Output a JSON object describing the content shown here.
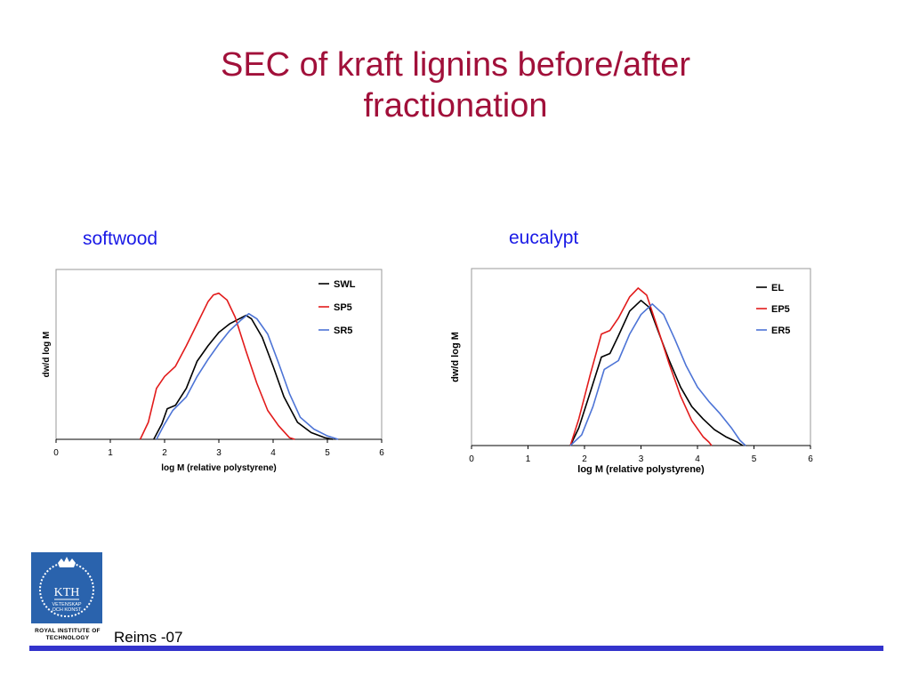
{
  "slide": {
    "title_line1": "SEC of kraft lignins before/after",
    "title_line2": "fractionation",
    "footer": "Reims -07",
    "institution": "ROYAL INSTITUTE OF TECHNOLOGY",
    "logo_text_main": "KTH",
    "logo_text_sub1": "VETENSKAP",
    "logo_text_sub2": "OCH KONST"
  },
  "colors": {
    "title": "#a1103a",
    "heading": "#1a1ae6",
    "footer_bar": "#3333cc",
    "logo": "#2a63ad"
  },
  "chart_data": [
    {
      "type": "line",
      "title": "softwood",
      "xlabel": "log M (relative polystyrene)",
      "ylabel": "dw/d log M",
      "xlim": [
        0,
        6
      ],
      "ylim": [
        0,
        1
      ],
      "xticks": [
        0,
        1,
        2,
        3,
        4,
        5,
        6
      ],
      "legend": "top-right",
      "grid": false,
      "series": [
        {
          "name": "SWL",
          "color": "#000000",
          "points": [
            [
              1.8,
              0
            ],
            [
              1.95,
              0.09
            ],
            [
              2.05,
              0.18
            ],
            [
              2.2,
              0.2
            ],
            [
              2.4,
              0.3
            ],
            [
              2.6,
              0.46
            ],
            [
              2.8,
              0.55
            ],
            [
              3.0,
              0.63
            ],
            [
              3.2,
              0.68
            ],
            [
              3.5,
              0.73
            ],
            [
              3.6,
              0.71
            ],
            [
              3.8,
              0.6
            ],
            [
              4.0,
              0.43
            ],
            [
              4.2,
              0.25
            ],
            [
              4.45,
              0.1
            ],
            [
              4.7,
              0.04
            ],
            [
              4.95,
              0.01
            ],
            [
              5.1,
              0
            ]
          ]
        },
        {
          "name": "SP5",
          "color": "#e21b1b",
          "points": [
            [
              1.55,
              0
            ],
            [
              1.7,
              0.1
            ],
            [
              1.85,
              0.3
            ],
            [
              2.0,
              0.37
            ],
            [
              2.2,
              0.43
            ],
            [
              2.4,
              0.55
            ],
            [
              2.6,
              0.68
            ],
            [
              2.8,
              0.81
            ],
            [
              2.9,
              0.85
            ],
            [
              3.0,
              0.86
            ],
            [
              3.15,
              0.82
            ],
            [
              3.3,
              0.72
            ],
            [
              3.5,
              0.52
            ],
            [
              3.7,
              0.33
            ],
            [
              3.9,
              0.17
            ],
            [
              4.1,
              0.08
            ],
            [
              4.3,
              0.01
            ],
            [
              4.4,
              0
            ]
          ]
        },
        {
          "name": "SR5",
          "color": "#4d74d6",
          "points": [
            [
              1.85,
              0
            ],
            [
              2.0,
              0.09
            ],
            [
              2.15,
              0.17
            ],
            [
              2.4,
              0.25
            ],
            [
              2.6,
              0.37
            ],
            [
              2.8,
              0.47
            ],
            [
              3.0,
              0.56
            ],
            [
              3.2,
              0.64
            ],
            [
              3.4,
              0.7
            ],
            [
              3.55,
              0.74
            ],
            [
              3.7,
              0.71
            ],
            [
              3.9,
              0.62
            ],
            [
              4.1,
              0.45
            ],
            [
              4.3,
              0.27
            ],
            [
              4.5,
              0.13
            ],
            [
              4.75,
              0.06
            ],
            [
              5.0,
              0.02
            ],
            [
              5.2,
              0
            ]
          ]
        }
      ]
    },
    {
      "type": "line",
      "title": "eucalypt",
      "xlabel": "log M (relative polystyrene)",
      "ylabel": "dw/d log M",
      "xlim": [
        0,
        6
      ],
      "ylim": [
        0,
        1
      ],
      "xticks": [
        0,
        1,
        2,
        3,
        4,
        5,
        6
      ],
      "legend": "top-right",
      "grid": false,
      "series": [
        {
          "name": "EL",
          "color": "#000000",
          "points": [
            [
              1.75,
              0
            ],
            [
              1.9,
              0.1
            ],
            [
              2.1,
              0.3
            ],
            [
              2.3,
              0.5
            ],
            [
              2.45,
              0.52
            ],
            [
              2.6,
              0.62
            ],
            [
              2.8,
              0.76
            ],
            [
              3.0,
              0.82
            ],
            [
              3.15,
              0.78
            ],
            [
              3.3,
              0.65
            ],
            [
              3.5,
              0.48
            ],
            [
              3.7,
              0.33
            ],
            [
              3.9,
              0.22
            ],
            [
              4.1,
              0.15
            ],
            [
              4.3,
              0.09
            ],
            [
              4.5,
              0.05
            ],
            [
              4.7,
              0.02
            ],
            [
              4.8,
              0
            ]
          ]
        },
        {
          "name": "EP5",
          "color": "#e21b1b",
          "points": [
            [
              1.75,
              0
            ],
            [
              1.9,
              0.15
            ],
            [
              2.1,
              0.4
            ],
            [
              2.3,
              0.63
            ],
            [
              2.45,
              0.65
            ],
            [
              2.6,
              0.72
            ],
            [
              2.8,
              0.84
            ],
            [
              2.95,
              0.89
            ],
            [
              3.1,
              0.85
            ],
            [
              3.3,
              0.66
            ],
            [
              3.5,
              0.46
            ],
            [
              3.7,
              0.28
            ],
            [
              3.9,
              0.14
            ],
            [
              4.1,
              0.05
            ],
            [
              4.2,
              0.02
            ],
            [
              4.25,
              0
            ]
          ]
        },
        {
          "name": "ER5",
          "color": "#4d74d6",
          "points": [
            [
              1.75,
              0
            ],
            [
              1.95,
              0.06
            ],
            [
              2.15,
              0.22
            ],
            [
              2.35,
              0.43
            ],
            [
              2.6,
              0.48
            ],
            [
              2.8,
              0.63
            ],
            [
              3.0,
              0.74
            ],
            [
              3.2,
              0.8
            ],
            [
              3.4,
              0.74
            ],
            [
              3.6,
              0.6
            ],
            [
              3.8,
              0.45
            ],
            [
              4.0,
              0.33
            ],
            [
              4.2,
              0.25
            ],
            [
              4.4,
              0.18
            ],
            [
              4.6,
              0.1
            ],
            [
              4.75,
              0.03
            ],
            [
              4.85,
              0
            ]
          ]
        }
      ]
    }
  ]
}
